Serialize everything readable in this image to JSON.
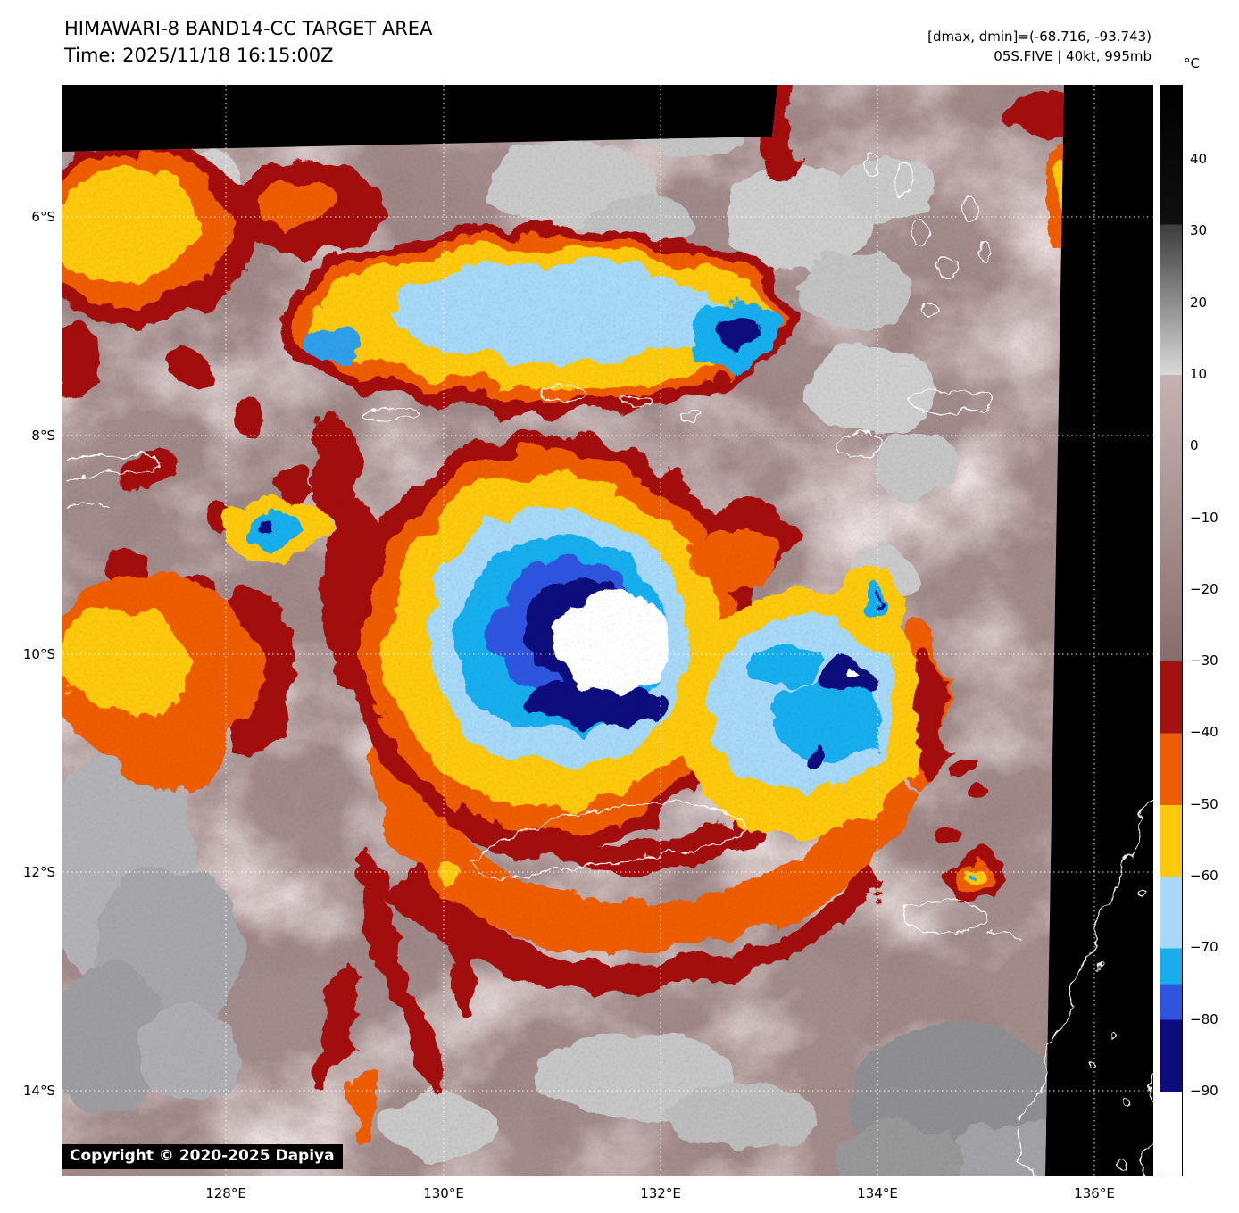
{
  "header": {
    "title": "HIMAWARI-8 BAND14-CC TARGET AREA",
    "time": "Time: 2025/11/18 16:15:00Z",
    "dmax_dmin": "[dmax, dmin]=(-68.716, -93.743)",
    "storm": "05S.FIVE | 40kt, 995mb"
  },
  "map": {
    "copyright": "Copyright © 2020-2025 Dapiya",
    "lat_ticks": [
      "6°S",
      "8°S",
      "10°S",
      "12°S",
      "14°S"
    ],
    "lon_ticks": [
      "128°E",
      "130°E",
      "132°E",
      "134°E",
      "136°E"
    ]
  },
  "colorbar": {
    "unit": "°C",
    "ticks": [
      {
        "label": "40",
        "value": 40
      },
      {
        "label": "30",
        "value": 30
      },
      {
        "label": "20",
        "value": 20
      },
      {
        "label": "10",
        "value": 10
      },
      {
        "label": "0",
        "value": 0
      },
      {
        "label": "−10",
        "value": -10
      },
      {
        "label": "−20",
        "value": -20
      },
      {
        "label": "−30",
        "value": -30
      },
      {
        "label": "−40",
        "value": -40
      },
      {
        "label": "−50",
        "value": -50
      },
      {
        "label": "−60",
        "value": -60
      },
      {
        "label": "−70",
        "value": -70
      },
      {
        "label": "−80",
        "value": -80
      },
      {
        "label": "−90",
        "value": -90
      }
    ],
    "segments": [
      {
        "from": 50.3,
        "to": 31,
        "c0": "#000000",
        "c1": "#101010"
      },
      {
        "from": 31,
        "to": 10,
        "c0": "#3c3c3c",
        "c1": "#d9d9d9"
      },
      {
        "from": 10,
        "to": -30,
        "c0": "#c7b2b2",
        "c1": "#876e6e"
      },
      {
        "from": -30,
        "to": -40,
        "c0": "#a31111",
        "c1": "#a31111"
      },
      {
        "from": -40,
        "to": -50,
        "c0": "#ee5d06",
        "c1": "#ee5d06"
      },
      {
        "from": -50,
        "to": -60,
        "c0": "#fcc90c",
        "c1": "#fcc90c"
      },
      {
        "from": -60,
        "to": -70,
        "c0": "#a6d8f7",
        "c1": "#a6d8f7"
      },
      {
        "from": -70,
        "to": -75,
        "c0": "#18aeee",
        "c1": "#18aeee"
      },
      {
        "from": -75,
        "to": -80,
        "c0": "#2f54e0",
        "c1": "#2f54e0"
      },
      {
        "from": -80,
        "to": -90,
        "c0": "#0c0c7e",
        "c1": "#0c0c7e"
      },
      {
        "from": -90,
        "to": -102,
        "c0": "#ffffff",
        "c1": "#ffffff"
      }
    ]
  },
  "colors": {
    "no_data": "#000000",
    "map_base": "#a18a8a",
    "coastline": "#ffffff",
    "grid": "#ffffff"
  }
}
